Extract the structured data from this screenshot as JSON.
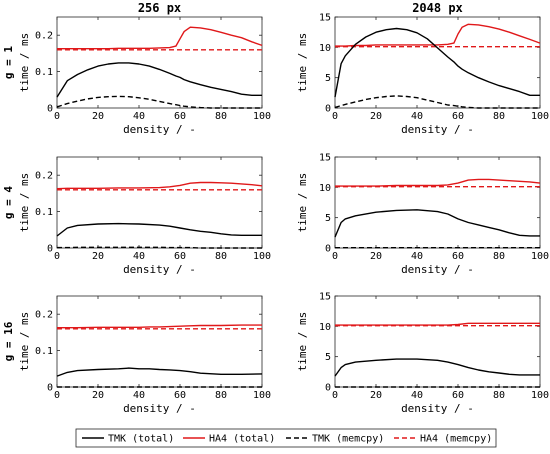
{
  "figure": {
    "column_titles": [
      "256 px",
      "2048 px"
    ],
    "row_labels": [
      "g = 1",
      "g = 4",
      "g = 16"
    ],
    "legend": [
      {
        "label": "TMK (total)",
        "color": "#000000",
        "dash": "solid"
      },
      {
        "label": "HA4 (total)",
        "color": "#e0181a",
        "dash": "solid"
      },
      {
        "label": "TMK (memcpy)",
        "color": "#000000",
        "dash": "dashed"
      },
      {
        "label": "HA4 (memcpy)",
        "color": "#e0181a",
        "dash": "dashed"
      }
    ],
    "colors": {
      "tmk": "#000000",
      "ha4": "#e0181a"
    }
  },
  "chart_data": [
    {
      "type": "line",
      "panel": "r0c0",
      "xlabel": "density / -",
      "ylabel": "time / ms",
      "xlim": [
        0,
        100
      ],
      "ylim": [
        0,
        0.25
      ],
      "xticks": [
        0,
        20,
        40,
        60,
        80,
        100
      ],
      "yticks": [
        0,
        0.1,
        0.2
      ],
      "x": [
        0,
        5,
        10,
        15,
        20,
        25,
        30,
        35,
        40,
        45,
        50,
        55,
        58,
        60,
        62,
        65,
        70,
        75,
        80,
        85,
        90,
        95,
        100
      ],
      "series": [
        {
          "name": "TMK (total)",
          "values": [
            0.03,
            0.075,
            0.092,
            0.105,
            0.115,
            0.121,
            0.124,
            0.124,
            0.121,
            0.115,
            0.106,
            0.095,
            0.088,
            0.084,
            0.078,
            0.072,
            0.064,
            0.057,
            0.051,
            0.045,
            0.038,
            0.035,
            0.035
          ]
        },
        {
          "name": "HA4 (total)",
          "values": [
            0.163,
            0.163,
            0.163,
            0.163,
            0.163,
            0.163,
            0.164,
            0.164,
            0.164,
            0.164,
            0.165,
            0.166,
            0.17,
            0.19,
            0.21,
            0.222,
            0.22,
            0.215,
            0.208,
            0.2,
            0.193,
            0.182,
            0.172
          ]
        },
        {
          "name": "TMK (memcpy)",
          "values": [
            0.003,
            0.012,
            0.019,
            0.025,
            0.029,
            0.031,
            0.032,
            0.031,
            0.028,
            0.024,
            0.018,
            0.012,
            0.009,
            0.007,
            0.005,
            0.003,
            0.001,
            0,
            0,
            0,
            0,
            0,
            0
          ]
        },
        {
          "name": "HA4 (memcpy)",
          "values": [
            0.16,
            0.16,
            0.16,
            0.16,
            0.16,
            0.16,
            0.16,
            0.16,
            0.16,
            0.16,
            0.16,
            0.16,
            0.16,
            0.16,
            0.16,
            0.16,
            0.16,
            0.16,
            0.16,
            0.16,
            0.16,
            0.16,
            0.16
          ]
        }
      ]
    },
    {
      "type": "line",
      "panel": "r0c1",
      "xlabel": "density / -",
      "ylabel": "time / ms",
      "xlim": [
        0,
        100
      ],
      "ylim": [
        0,
        15
      ],
      "xticks": [
        0,
        20,
        40,
        60,
        80,
        100
      ],
      "yticks": [
        0,
        5,
        10,
        15
      ],
      "x": [
        0,
        3,
        5,
        10,
        15,
        20,
        25,
        30,
        35,
        40,
        45,
        50,
        55,
        58,
        60,
        62,
        65,
        70,
        75,
        80,
        85,
        90,
        95,
        100
      ],
      "series": [
        {
          "name": "TMK (total)",
          "values": [
            1.8,
            7.3,
            8.6,
            10.5,
            11.7,
            12.5,
            12.9,
            13.1,
            12.9,
            12.4,
            11.4,
            9.9,
            8.4,
            7.6,
            6.9,
            6.4,
            5.8,
            5.0,
            4.3,
            3.7,
            3.2,
            2.7,
            2.1,
            2.1
          ]
        },
        {
          "name": "HA4 (total)",
          "values": [
            10.2,
            10.2,
            10.2,
            10.3,
            10.3,
            10.4,
            10.4,
            10.4,
            10.4,
            10.4,
            10.4,
            10.4,
            10.5,
            10.7,
            12.2,
            13.3,
            13.8,
            13.7,
            13.4,
            13.0,
            12.5,
            11.9,
            11.3,
            10.7
          ]
        },
        {
          "name": "TMK (memcpy)",
          "values": [
            0.1,
            0.4,
            0.6,
            1.0,
            1.4,
            1.7,
            1.9,
            2.0,
            1.9,
            1.7,
            1.3,
            0.9,
            0.5,
            0.4,
            0.3,
            0.2,
            0.1,
            0,
            0,
            0,
            0,
            0,
            0,
            0
          ]
        },
        {
          "name": "HA4 (memcpy)",
          "values": [
            10.1,
            10.1,
            10.1,
            10.1,
            10.1,
            10.1,
            10.1,
            10.1,
            10.1,
            10.1,
            10.1,
            10.1,
            10.1,
            10.1,
            10.1,
            10.1,
            10.1,
            10.1,
            10.1,
            10.1,
            10.1,
            10.1,
            10.1,
            10.1
          ]
        }
      ]
    },
    {
      "type": "line",
      "panel": "r1c0",
      "xlabel": "density / -",
      "ylabel": "time / ms",
      "xlim": [
        0,
        100
      ],
      "ylim": [
        0,
        0.25
      ],
      "xticks": [
        0,
        20,
        40,
        60,
        80,
        100
      ],
      "yticks": [
        0,
        0.1,
        0.2
      ],
      "x": [
        0,
        5,
        10,
        20,
        30,
        40,
        50,
        55,
        60,
        65,
        70,
        75,
        80,
        85,
        90,
        95,
        100
      ],
      "series": [
        {
          "name": "TMK (total)",
          "values": [
            0.033,
            0.055,
            0.062,
            0.066,
            0.067,
            0.066,
            0.063,
            0.06,
            0.055,
            0.05,
            0.046,
            0.043,
            0.039,
            0.036,
            0.035,
            0.035,
            0.035
          ]
        },
        {
          "name": "HA4 (total)",
          "values": [
            0.163,
            0.164,
            0.164,
            0.164,
            0.165,
            0.165,
            0.166,
            0.168,
            0.172,
            0.178,
            0.18,
            0.18,
            0.179,
            0.178,
            0.176,
            0.174,
            0.171
          ]
        },
        {
          "name": "TMK (memcpy)",
          "values": [
            0.001,
            0.001,
            0.002,
            0.002,
            0.002,
            0.002,
            0.002,
            0.001,
            0.001,
            0.001,
            0,
            0,
            0,
            0,
            0,
            0,
            0
          ]
        },
        {
          "name": "HA4 (memcpy)",
          "values": [
            0.16,
            0.16,
            0.16,
            0.16,
            0.16,
            0.16,
            0.16,
            0.16,
            0.16,
            0.16,
            0.16,
            0.16,
            0.16,
            0.16,
            0.16,
            0.16,
            0.16
          ]
        }
      ]
    },
    {
      "type": "line",
      "panel": "r1c1",
      "xlabel": "density / -",
      "ylabel": "time / ms",
      "xlim": [
        0,
        100
      ],
      "ylim": [
        0,
        15
      ],
      "xticks": [
        0,
        20,
        40,
        60,
        80,
        100
      ],
      "yticks": [
        0,
        5,
        10,
        15
      ],
      "x": [
        0,
        3,
        5,
        10,
        20,
        30,
        40,
        50,
        55,
        60,
        65,
        70,
        75,
        80,
        85,
        90,
        95,
        100
      ],
      "series": [
        {
          "name": "TMK (total)",
          "values": [
            1.8,
            4.2,
            4.8,
            5.3,
            5.9,
            6.2,
            6.3,
            6.0,
            5.6,
            4.8,
            4.2,
            3.8,
            3.4,
            3.0,
            2.5,
            2.1,
            2.0,
            2.0
          ]
        },
        {
          "name": "HA4 (total)",
          "values": [
            10.2,
            10.2,
            10.2,
            10.2,
            10.2,
            10.3,
            10.3,
            10.3,
            10.4,
            10.7,
            11.2,
            11.3,
            11.3,
            11.2,
            11.1,
            11.0,
            10.9,
            10.7
          ]
        },
        {
          "name": "TMK (memcpy)",
          "values": [
            0.05,
            0.05,
            0.05,
            0.05,
            0.05,
            0.05,
            0.05,
            0.05,
            0.05,
            0.05,
            0.05,
            0.05,
            0.05,
            0.05,
            0.05,
            0.05,
            0.05,
            0.05
          ]
        },
        {
          "name": "HA4 (memcpy)",
          "values": [
            10.1,
            10.1,
            10.1,
            10.1,
            10.1,
            10.1,
            10.1,
            10.1,
            10.1,
            10.1,
            10.1,
            10.1,
            10.1,
            10.1,
            10.1,
            10.1,
            10.1,
            10.1
          ]
        }
      ]
    },
    {
      "type": "line",
      "panel": "r2c0",
      "xlabel": "density / -",
      "ylabel": "time / ms",
      "xlim": [
        0,
        100
      ],
      "ylim": [
        0,
        0.25
      ],
      "xticks": [
        0,
        20,
        40,
        60,
        80,
        100
      ],
      "yticks": [
        0,
        0.1,
        0.2
      ],
      "x": [
        0,
        5,
        10,
        20,
        30,
        35,
        40,
        45,
        50,
        55,
        60,
        65,
        70,
        80,
        90,
        100
      ],
      "series": [
        {
          "name": "TMK (total)",
          "values": [
            0.03,
            0.04,
            0.045,
            0.048,
            0.05,
            0.052,
            0.05,
            0.05,
            0.048,
            0.047,
            0.045,
            0.042,
            0.038,
            0.035,
            0.035,
            0.036
          ]
        },
        {
          "name": "HA4 (total)",
          "values": [
            0.163,
            0.163,
            0.163,
            0.164,
            0.164,
            0.164,
            0.164,
            0.165,
            0.165,
            0.166,
            0.167,
            0.168,
            0.169,
            0.169,
            0.17,
            0.17
          ]
        },
        {
          "name": "TMK (memcpy)",
          "values": [
            0,
            0,
            0,
            0,
            0,
            0,
            0,
            0,
            0,
            0,
            0,
            0,
            0,
            0,
            0,
            0
          ]
        },
        {
          "name": "HA4 (memcpy)",
          "values": [
            0.16,
            0.16,
            0.16,
            0.16,
            0.16,
            0.16,
            0.16,
            0.16,
            0.16,
            0.16,
            0.16,
            0.16,
            0.16,
            0.16,
            0.16,
            0.16
          ]
        }
      ]
    },
    {
      "type": "line",
      "panel": "r2c1",
      "xlabel": "density / -",
      "ylabel": "time / ms",
      "xlim": [
        0,
        100
      ],
      "ylim": [
        0,
        15
      ],
      "xticks": [
        0,
        20,
        40,
        60,
        80,
        100
      ],
      "yticks": [
        0,
        5,
        10,
        15
      ],
      "x": [
        0,
        3,
        5,
        10,
        20,
        30,
        40,
        50,
        55,
        60,
        65,
        70,
        75,
        80,
        85,
        90,
        95,
        100
      ],
      "series": [
        {
          "name": "TMK (total)",
          "values": [
            1.8,
            3.2,
            3.7,
            4.1,
            4.4,
            4.6,
            4.6,
            4.4,
            4.1,
            3.7,
            3.2,
            2.8,
            2.5,
            2.3,
            2.1,
            2.0,
            2.0,
            2.0
          ]
        },
        {
          "name": "HA4 (total)",
          "values": [
            10.2,
            10.2,
            10.2,
            10.2,
            10.2,
            10.2,
            10.2,
            10.2,
            10.2,
            10.3,
            10.5,
            10.5,
            10.5,
            10.5,
            10.5,
            10.5,
            10.5,
            10.5
          ]
        },
        {
          "name": "TMK (memcpy)",
          "values": [
            0,
            0,
            0,
            0,
            0,
            0,
            0,
            0,
            0,
            0,
            0,
            0,
            0,
            0,
            0,
            0,
            0,
            0
          ]
        },
        {
          "name": "HA4 (memcpy)",
          "values": [
            10.1,
            10.1,
            10.1,
            10.1,
            10.1,
            10.1,
            10.1,
            10.1,
            10.1,
            10.1,
            10.1,
            10.1,
            10.1,
            10.1,
            10.1,
            10.1,
            10.1,
            10.1
          ]
        }
      ]
    }
  ]
}
